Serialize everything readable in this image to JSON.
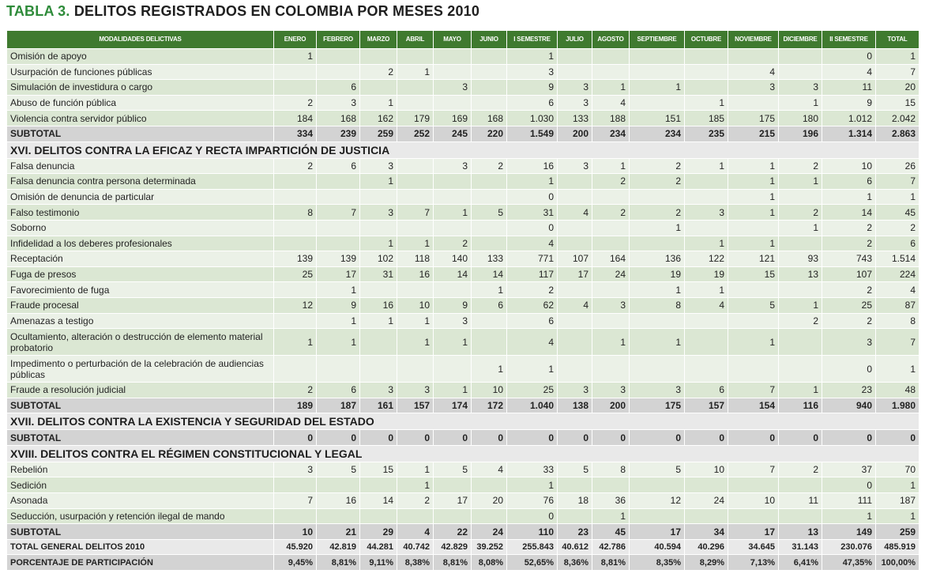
{
  "title": {
    "lead": "TABLA 3.",
    "rest": "DELITOS REGISTRADOS EN COLOMBIA POR MESES 2010"
  },
  "columns": [
    "MODALIDADES DELICTIVAS",
    "ENERO",
    "FEBRERO",
    "MARZO",
    "ABRIL",
    "MAYO",
    "JUNIO",
    "I SEMESTRE",
    "JULIO",
    "AGOSTO",
    "SEPTIEMBRE",
    "OCTUBRE",
    "NOVIEMBRE",
    "DICIEMBRE",
    "II SEMESTRE",
    "TOTAL"
  ],
  "rows": [
    {
      "type": "data",
      "group": 0,
      "label": "Omisión de apoyo",
      "values": [
        "1",
        "",
        "",
        "",
        "",
        "",
        "1",
        "",
        "",
        "",
        "",
        "",
        "",
        "0",
        "1"
      ]
    },
    {
      "type": "data",
      "group": 0,
      "label": "Usurpación de funciones públicas",
      "values": [
        "",
        "",
        "2",
        "1",
        "",
        "",
        "3",
        "",
        "",
        "",
        "",
        "4",
        "",
        "4",
        "7"
      ]
    },
    {
      "type": "data",
      "group": 0,
      "label": "Simulación de investidura o cargo",
      "values": [
        "",
        "6",
        "",
        "",
        "3",
        "",
        "9",
        "3",
        "1",
        "1",
        "",
        "3",
        "3",
        "11",
        "20"
      ]
    },
    {
      "type": "data",
      "group": 0,
      "label": "Abuso de función pública",
      "values": [
        "2",
        "3",
        "1",
        "",
        "",
        "",
        "6",
        "3",
        "4",
        "",
        "1",
        "",
        "1",
        "9",
        "15"
      ]
    },
    {
      "type": "data",
      "group": 0,
      "label": "Violencia contra servidor público",
      "values": [
        "184",
        "168",
        "162",
        "179",
        "169",
        "168",
        "1.030",
        "133",
        "188",
        "151",
        "185",
        "175",
        "180",
        "1.012",
        "2.042"
      ]
    },
    {
      "type": "subtotal",
      "label": "SUBTOTAL",
      "values": [
        "334",
        "239",
        "259",
        "252",
        "245",
        "220",
        "1.549",
        "200",
        "234",
        "234",
        "235",
        "215",
        "196",
        "1.314",
        "2.863"
      ]
    },
    {
      "type": "section",
      "label": "XVI. DELITOS CONTRA LA EFICAZ Y RECTA IMPARTICIÓN DE JUSTICIA"
    },
    {
      "type": "data",
      "group": 1,
      "label": "Falsa denuncia",
      "values": [
        "2",
        "6",
        "3",
        "",
        "3",
        "2",
        "16",
        "3",
        "1",
        "2",
        "1",
        "1",
        "2",
        "10",
        "26"
      ]
    },
    {
      "type": "data",
      "group": 1,
      "label": "Falsa denuncia contra persona determinada",
      "values": [
        "",
        "",
        "1",
        "",
        "",
        "",
        "1",
        "",
        "2",
        "2",
        "",
        "1",
        "1",
        "6",
        "7"
      ]
    },
    {
      "type": "data",
      "group": 1,
      "label": "Omisión de denuncia de particular",
      "values": [
        "",
        "",
        "",
        "",
        "",
        "",
        "0",
        "",
        "",
        "",
        "",
        "1",
        "",
        "1",
        "1"
      ]
    },
    {
      "type": "data",
      "group": 1,
      "label": "Falso testimonio",
      "values": [
        "8",
        "7",
        "3",
        "7",
        "1",
        "5",
        "31",
        "4",
        "2",
        "2",
        "3",
        "1",
        "2",
        "14",
        "45"
      ]
    },
    {
      "type": "data",
      "group": 1,
      "label": "Soborno",
      "values": [
        "",
        "",
        "",
        "",
        "",
        "",
        "0",
        "",
        "",
        "1",
        "",
        "",
        "1",
        "2",
        "2"
      ]
    },
    {
      "type": "data",
      "group": 1,
      "label": "Infidelidad a los deberes profesionales",
      "values": [
        "",
        "",
        "1",
        "1",
        "2",
        "",
        "4",
        "",
        "",
        "",
        "1",
        "1",
        "",
        "2",
        "6"
      ]
    },
    {
      "type": "data",
      "group": 1,
      "label": "Receptación",
      "values": [
        "139",
        "139",
        "102",
        "118",
        "140",
        "133",
        "771",
        "107",
        "164",
        "136",
        "122",
        "121",
        "93",
        "743",
        "1.514"
      ]
    },
    {
      "type": "data",
      "group": 1,
      "label": "Fuga de presos",
      "values": [
        "25",
        "17",
        "31",
        "16",
        "14",
        "14",
        "117",
        "17",
        "24",
        "19",
        "19",
        "15",
        "13",
        "107",
        "224"
      ]
    },
    {
      "type": "data",
      "group": 1,
      "label": "Favorecimiento de fuga",
      "values": [
        "",
        "1",
        "",
        "",
        "",
        "1",
        "2",
        "",
        "",
        "1",
        "1",
        "",
        "",
        "2",
        "4"
      ]
    },
    {
      "type": "data",
      "group": 1,
      "label": "Fraude procesal",
      "values": [
        "12",
        "9",
        "16",
        "10",
        "9",
        "6",
        "62",
        "4",
        "3",
        "8",
        "4",
        "5",
        "1",
        "25",
        "87"
      ]
    },
    {
      "type": "data",
      "group": 1,
      "label": "Amenazas a testigo",
      "values": [
        "",
        "1",
        "1",
        "1",
        "3",
        "",
        "6",
        "",
        "",
        "",
        "",
        "",
        "2",
        "2",
        "8"
      ]
    },
    {
      "type": "data",
      "group": 1,
      "tall": true,
      "label": "Ocultamiento, alteración o destrucción de elemento material probatorio",
      "values": [
        "1",
        "1",
        "",
        "1",
        "1",
        "",
        "4",
        "",
        "1",
        "1",
        "",
        "1",
        "",
        "3",
        "7"
      ]
    },
    {
      "type": "data",
      "group": 1,
      "tall": true,
      "label": "Impedimento o perturbación de la celebración de audiencias públicas",
      "values": [
        "",
        "",
        "",
        "",
        "",
        "1",
        "1",
        "",
        "",
        "",
        "",
        "",
        "",
        "0",
        "1"
      ]
    },
    {
      "type": "data",
      "group": 1,
      "label": "Fraude a resolución judicial",
      "values": [
        "2",
        "6",
        "3",
        "3",
        "1",
        "10",
        "25",
        "3",
        "3",
        "3",
        "6",
        "7",
        "1",
        "23",
        "48"
      ]
    },
    {
      "type": "subtotal",
      "label": "SUBTOTAL",
      "values": [
        "189",
        "187",
        "161",
        "157",
        "174",
        "172",
        "1.040",
        "138",
        "200",
        "175",
        "157",
        "154",
        "116",
        "940",
        "1.980"
      ]
    },
    {
      "type": "section",
      "label": "XVII. DELITOS CONTRA LA EXISTENCIA Y SEGURIDAD DEL ESTADO"
    },
    {
      "type": "subtotal",
      "label": "SUBTOTAL",
      "values": [
        "0",
        "0",
        "0",
        "0",
        "0",
        "0",
        "0",
        "0",
        "0",
        "0",
        "0",
        "0",
        "0",
        "0",
        "0"
      ]
    },
    {
      "type": "section",
      "label": "XVIII. DELITOS CONTRA EL RÉGIMEN CONSTITUCIONAL Y LEGAL"
    },
    {
      "type": "data",
      "group": 3,
      "label": "Rebelión",
      "values": [
        "3",
        "5",
        "15",
        "1",
        "5",
        "4",
        "33",
        "5",
        "8",
        "5",
        "10",
        "7",
        "2",
        "37",
        "70"
      ]
    },
    {
      "type": "data",
      "group": 3,
      "label": "Sedición",
      "values": [
        "",
        "",
        "",
        "1",
        "",
        "",
        "1",
        "",
        "",
        "",
        "",
        "",
        "",
        "0",
        "1"
      ]
    },
    {
      "type": "data",
      "group": 3,
      "label": "Asonada",
      "values": [
        "7",
        "16",
        "14",
        "2",
        "17",
        "20",
        "76",
        "18",
        "36",
        "12",
        "24",
        "10",
        "11",
        "111",
        "187"
      ]
    },
    {
      "type": "data",
      "group": 3,
      "label": "Seducción, usurpación y retención ilegal de mando",
      "values": [
        "",
        "",
        "",
        "",
        "",
        "",
        "0",
        "",
        "1",
        "",
        "",
        "",
        "",
        "1",
        "1"
      ]
    },
    {
      "type": "subtotal",
      "label": "SUBTOTAL",
      "values": [
        "10",
        "21",
        "29",
        "4",
        "22",
        "24",
        "110",
        "23",
        "45",
        "17",
        "34",
        "17",
        "13",
        "149",
        "259"
      ]
    },
    {
      "type": "total",
      "label": "TOTAL GENERAL DELITOS 2010",
      "values": [
        "45.920",
        "42.819",
        "44.281",
        "40.742",
        "42.829",
        "39.252",
        "255.843",
        "40.612",
        "42.786",
        "40.594",
        "40.296",
        "34.645",
        "31.143",
        "230.076",
        "485.919"
      ]
    },
    {
      "type": "pct",
      "label": "PORCENTAJE DE PARTICIPACIÓN",
      "values": [
        "9,45%",
        "8,81%",
        "9,11%",
        "8,38%",
        "8,81%",
        "8,08%",
        "52,65%",
        "8,36%",
        "8,81%",
        "8,35%",
        "8,29%",
        "7,13%",
        "6,41%",
        "47,35%",
        "100,00%"
      ]
    }
  ]
}
